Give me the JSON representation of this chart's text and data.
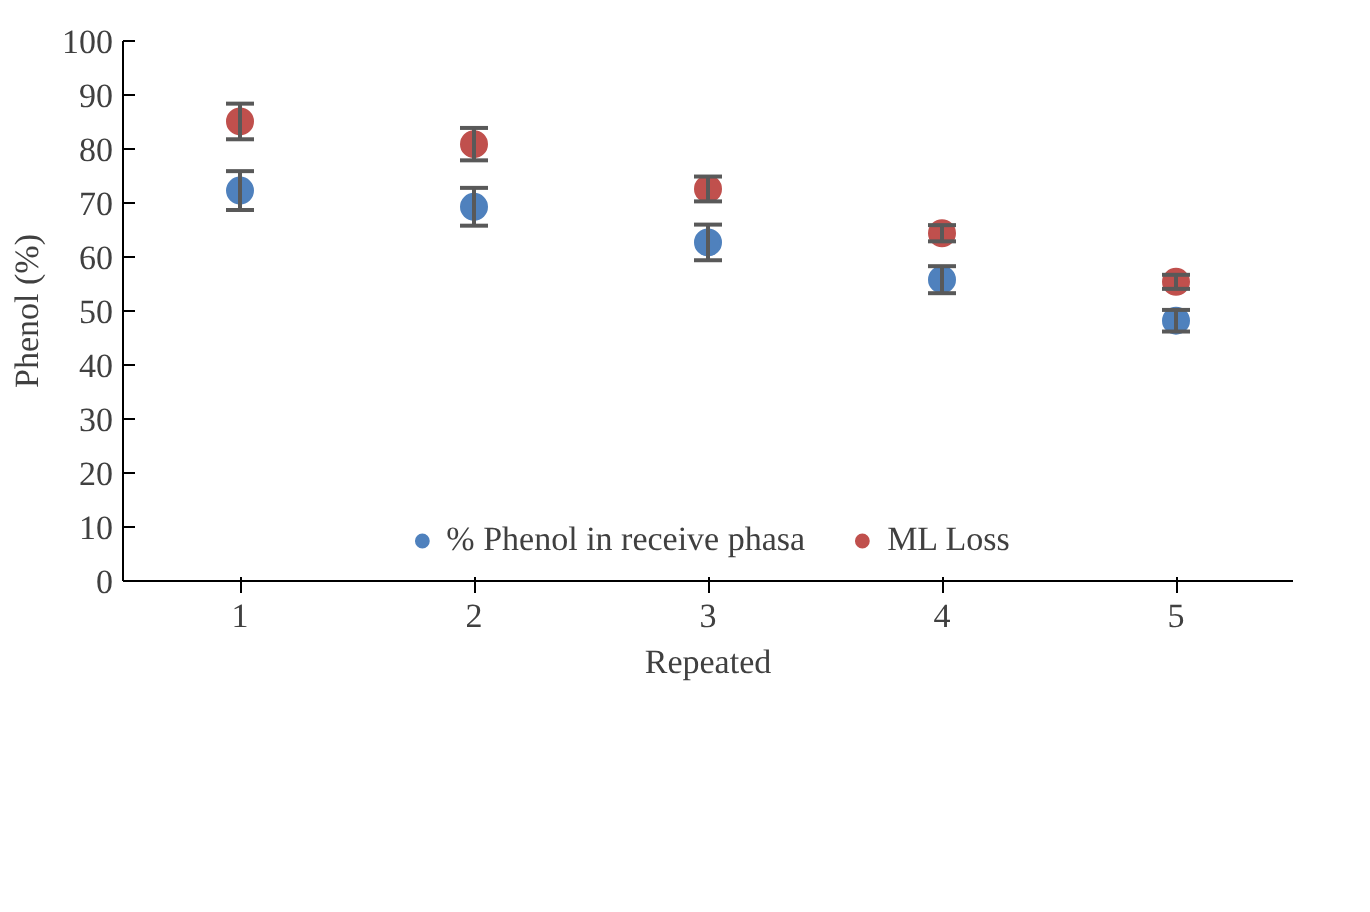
{
  "chart_data": {
    "type": "scatter",
    "xlabel": "Repeated",
    "ylabel": "Phenol (%)",
    "x": [
      1,
      2,
      3,
      4,
      5
    ],
    "xlim": [
      0.5,
      5.5
    ],
    "xticks": [
      1,
      2,
      3,
      4,
      5
    ],
    "ylim": [
      0,
      100
    ],
    "yticks": [
      0,
      10,
      20,
      30,
      40,
      50,
      60,
      70,
      80,
      90,
      100
    ],
    "grid": false,
    "legend": "bottom",
    "marker": "circle",
    "series": [
      {
        "name": "% Phenol in receive phasa",
        "color": "#4f81bd",
        "values": [
          72.3,
          69.3,
          62.7,
          55.8,
          48.2
        ],
        "errors": [
          3.6,
          3.5,
          3.3,
          2.5,
          2
        ]
      },
      {
        "name": "ML Loss",
        "color": "#c0504d",
        "values": [
          85.1,
          80.9,
          72.6,
          64.4,
          55.4
        ],
        "errors": [
          3.3,
          3,
          2.3,
          1.5,
          1.3
        ]
      }
    ]
  }
}
